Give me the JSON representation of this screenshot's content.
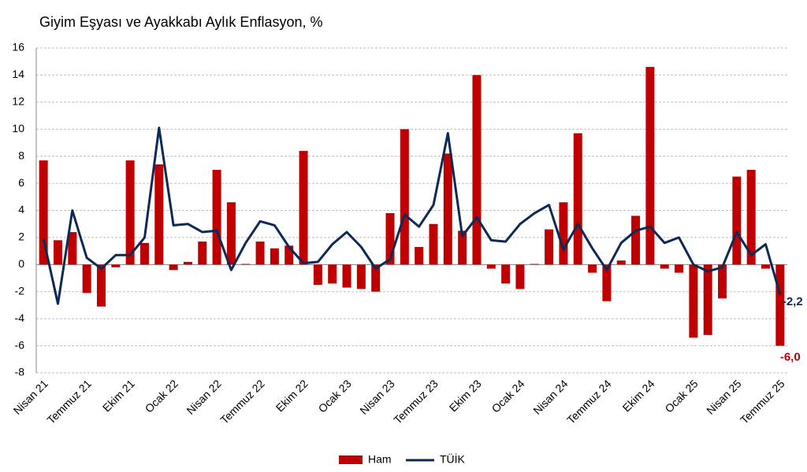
{
  "chart_data": {
    "type": "bar_line",
    "title": "Giyim Eşyası ve Ayakkabı Aylık Enflasyon, %",
    "categories": [
      "Nisan 21",
      null,
      null,
      "Temmuz 21",
      null,
      null,
      "Ekim 21",
      null,
      null,
      "Ocak 22",
      null,
      null,
      "Nisan 22",
      null,
      null,
      "Temmuz 22",
      null,
      null,
      "Ekim 22",
      null,
      null,
      "Ocak 23",
      null,
      null,
      "Nisan 23",
      null,
      null,
      "Temmuz 23",
      null,
      null,
      "Ekim 23",
      null,
      null,
      "Ocak 24",
      null,
      null,
      "Nisan 24",
      null,
      null,
      "Temmuz 24",
      null,
      null,
      "Ekim 24",
      null,
      null,
      "Ocak 25",
      null,
      null,
      "Nisan 25",
      null,
      null,
      "Temmuz 25"
    ],
    "series": [
      {
        "name": "Ham",
        "type": "bar",
        "color": "#c00000",
        "values": [
          7.7,
          1.8,
          2.4,
          -2.1,
          -3.1,
          -0.2,
          7.7,
          1.6,
          7.4,
          -0.4,
          0.2,
          1.7,
          7.0,
          4.6,
          0.05,
          1.7,
          1.2,
          1.4,
          8.4,
          -1.5,
          -1.4,
          -1.7,
          -1.8,
          -2.0,
          3.8,
          10.0,
          1.3,
          3.0,
          8.2,
          2.5,
          14.0,
          -0.3,
          -1.4,
          -1.8,
          0.05,
          2.6,
          4.6,
          9.7,
          -0.6,
          -2.7,
          0.3,
          3.6,
          14.6,
          -0.3,
          -0.6,
          -5.4,
          -5.2,
          -2.5,
          6.5,
          7.0,
          -0.3,
          -6.0
        ],
        "value_labels": [
          null,
          null,
          null,
          null,
          null,
          null,
          null,
          null,
          null,
          null,
          null,
          null,
          null,
          null,
          null,
          null,
          null,
          null,
          null,
          null,
          null,
          null,
          null,
          null,
          null,
          null,
          null,
          null,
          null,
          null,
          null,
          null,
          null,
          null,
          null,
          null,
          null,
          null,
          null,
          null,
          null,
          null,
          null,
          null,
          null,
          null,
          null,
          null,
          null,
          null,
          null,
          "-6,0"
        ]
      },
      {
        "name": "TÜİK",
        "type": "line",
        "color": "#0d2a57",
        "values": [
          1.9,
          -2.9,
          4.0,
          0.5,
          -0.3,
          0.7,
          0.7,
          2.0,
          10.1,
          2.9,
          3.0,
          2.4,
          2.5,
          -0.4,
          1.6,
          3.2,
          2.9,
          1.3,
          0.1,
          0.2,
          1.5,
          2.4,
          1.3,
          -0.3,
          0.4,
          3.7,
          2.8,
          4.4,
          9.7,
          2.1,
          3.5,
          1.8,
          1.7,
          3.0,
          3.8,
          4.4,
          1.1,
          3.0,
          1.2,
          -0.4,
          1.6,
          2.5,
          2.8,
          1.6,
          2.0,
          0.0,
          -0.5,
          -0.2,
          2.4,
          0.7,
          1.5,
          -2.2
        ],
        "value_labels": [
          null,
          null,
          null,
          null,
          null,
          null,
          null,
          null,
          null,
          null,
          null,
          null,
          null,
          null,
          null,
          null,
          null,
          null,
          null,
          null,
          null,
          null,
          null,
          null,
          null,
          null,
          null,
          null,
          null,
          null,
          null,
          null,
          null,
          null,
          null,
          null,
          null,
          null,
          null,
          null,
          null,
          null,
          null,
          null,
          null,
          null,
          null,
          null,
          null,
          null,
          null,
          "-2,2"
        ]
      }
    ],
    "ylim": [
      -8,
      16
    ],
    "yticks": [
      -8,
      -6,
      -4,
      -2,
      0,
      2,
      4,
      6,
      8,
      10,
      12,
      14,
      16
    ],
    "grid": true,
    "legend": "bottom"
  }
}
